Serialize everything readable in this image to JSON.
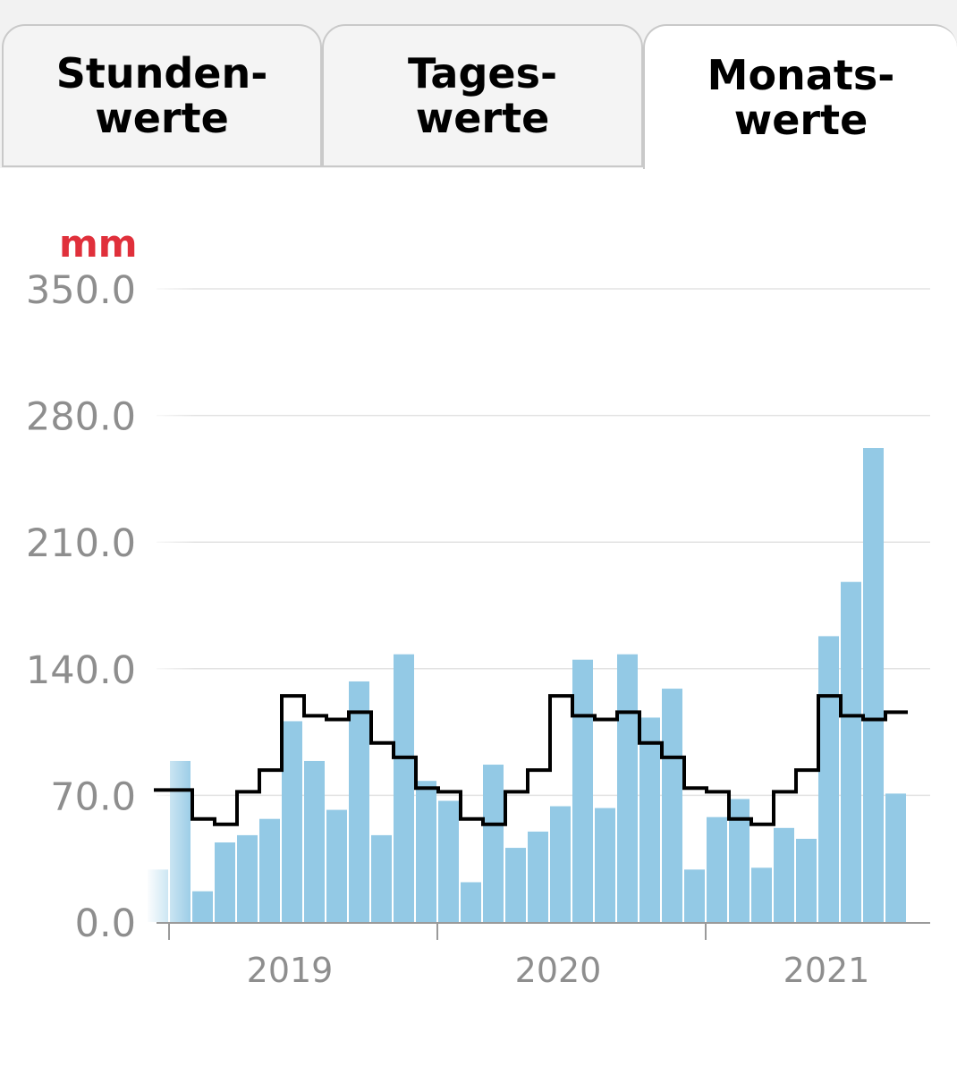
{
  "tabs": [
    {
      "line1": "Stunden-",
      "line2": "werte",
      "active": false
    },
    {
      "line1": "Tages-",
      "line2": "werte",
      "active": false
    },
    {
      "line1": "Monats-",
      "line2": "werte",
      "active": true
    }
  ],
  "colors": {
    "bar": "#93c9e5",
    "norm_line": "#000000",
    "unit": "#e0303b",
    "grid": "#e3e3e3",
    "axis": "#9a9a9a",
    "tick_text": "#8e8e8e"
  },
  "chart_data": {
    "type": "bar",
    "unit_label": "mm",
    "ylim": [
      0,
      350
    ],
    "yticks": [
      "350.0",
      "280.0",
      "210.0",
      "140.0",
      "70.0",
      "0.0"
    ],
    "ytick_values": [
      350,
      280,
      210,
      140,
      70,
      0
    ],
    "grid": true,
    "year_labels": [
      "2019",
      "2020",
      "2021"
    ],
    "year_start_index": [
      1,
      13,
      25
    ],
    "series": [
      {
        "kind": "bars",
        "values": [
          29,
          89,
          17,
          44,
          48,
          57,
          111,
          89,
          62,
          133,
          48,
          148,
          78,
          67,
          22,
          87,
          41,
          50,
          64,
          145,
          63,
          148,
          113,
          129,
          29,
          58,
          68,
          30,
          52,
          46,
          158,
          188,
          262,
          71
        ]
      },
      {
        "kind": "step",
        "values": [
          73,
          73,
          57,
          54,
          72,
          84,
          125,
          114,
          112,
          116,
          99,
          91,
          74,
          72,
          57,
          54,
          72,
          84,
          125,
          114,
          112,
          116,
          99,
          91,
          74,
          72,
          57,
          54,
          72,
          84,
          125,
          114,
          112,
          116
        ]
      }
    ]
  }
}
